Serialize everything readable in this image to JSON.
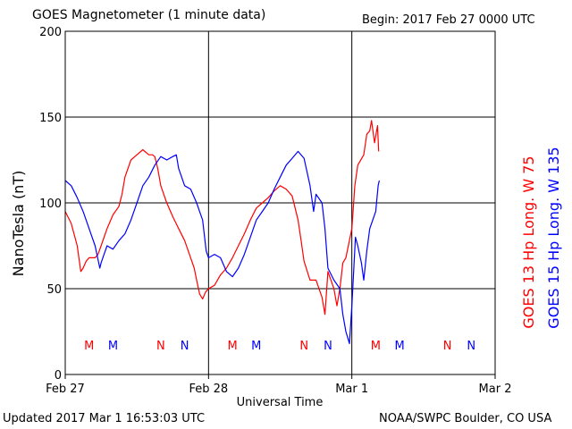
{
  "header": {
    "title": "GOES Magnetometer (1 minute data)",
    "begin": "Begin:  2017 Feb 27 0000 UTC"
  },
  "footer": {
    "updated": "Updated 2017 Mar  1 16:53:03 UTC",
    "credit": "NOAA/SWPC Boulder, CO USA"
  },
  "colors": {
    "goes13": "#ff0000",
    "goes15": "#0000ff",
    "grid": "#000000"
  },
  "chart_data": {
    "type": "line",
    "title": "GOES Magnetometer (1 minute data)",
    "xlabel": "Universal Time",
    "ylabel": "NanoTesla (nT)",
    "xlim": [
      0,
      72
    ],
    "ylim": [
      0,
      200
    ],
    "x_unit": "hours since 2017 Feb 27 0000 UTC",
    "x_ticks": [
      {
        "x": 0,
        "label": "Feb 27"
      },
      {
        "x": 24,
        "label": "Feb 28"
      },
      {
        "x": 48,
        "label": "Mar 1"
      },
      {
        "x": 72,
        "label": "Mar 2"
      }
    ],
    "y_ticks": [
      0,
      50,
      100,
      150,
      200
    ],
    "grid": true,
    "legend_placement": "right, vertical",
    "series": [
      {
        "name": "GOES 13 Hp  Long. W 75",
        "color": "#ff0000",
        "points": [
          [
            0,
            95
          ],
          [
            1,
            88
          ],
          [
            2,
            75
          ],
          [
            2.6,
            60
          ],
          [
            3,
            62
          ],
          [
            3.5,
            66
          ],
          [
            4,
            68
          ],
          [
            5,
            68
          ],
          [
            5.5,
            70
          ],
          [
            6,
            75
          ],
          [
            7,
            85
          ],
          [
            8,
            93
          ],
          [
            9,
            98
          ],
          [
            9.5,
            105
          ],
          [
            10,
            115
          ],
          [
            11,
            125
          ],
          [
            12,
            128
          ],
          [
            13,
            131
          ],
          [
            14,
            128
          ],
          [
            14.6,
            128
          ],
          [
            15,
            127
          ],
          [
            15.5,
            120
          ],
          [
            16,
            110
          ],
          [
            17,
            100
          ],
          [
            18,
            92
          ],
          [
            19,
            85
          ],
          [
            20,
            78
          ],
          [
            21,
            68
          ],
          [
            21.6,
            62
          ],
          [
            22,
            55
          ],
          [
            22.5,
            47
          ],
          [
            23,
            44
          ],
          [
            23.5,
            48
          ],
          [
            24,
            50
          ],
          [
            25,
            52
          ],
          [
            26,
            58
          ],
          [
            27,
            62
          ],
          [
            28,
            68
          ],
          [
            29,
            75
          ],
          [
            30,
            82
          ],
          [
            31,
            90
          ],
          [
            32,
            97
          ],
          [
            33,
            100
          ],
          [
            34,
            103
          ],
          [
            35,
            107
          ],
          [
            36,
            110
          ],
          [
            37,
            108
          ],
          [
            38,
            104
          ],
          [
            39,
            90
          ],
          [
            39.5,
            78
          ],
          [
            40,
            66
          ],
          [
            41,
            55
          ],
          [
            42,
            55
          ],
          [
            43,
            45
          ],
          [
            43.5,
            35
          ],
          [
            44,
            60
          ],
          [
            44.5,
            55
          ],
          [
            45,
            50
          ],
          [
            45.5,
            40
          ],
          [
            46,
            50
          ],
          [
            46.5,
            65
          ],
          [
            47,
            68
          ],
          [
            48,
            85
          ],
          [
            48.5,
            110
          ],
          [
            49,
            122
          ],
          [
            50,
            128
          ],
          [
            50.5,
            140
          ],
          [
            51,
            142
          ],
          [
            51.3,
            148
          ],
          [
            51.8,
            135
          ],
          [
            52.3,
            145
          ],
          [
            52.5,
            130
          ]
        ]
      },
      {
        "name": "GOES 15 Hp  Long. W 135",
        "color": "#0000ff",
        "points": [
          [
            0,
            113
          ],
          [
            1,
            110
          ],
          [
            2,
            103
          ],
          [
            3,
            95
          ],
          [
            4,
            85
          ],
          [
            5,
            75
          ],
          [
            5.8,
            62
          ],
          [
            6,
            65
          ],
          [
            6.5,
            70
          ],
          [
            7,
            75
          ],
          [
            8,
            73
          ],
          [
            9,
            78
          ],
          [
            10,
            82
          ],
          [
            11,
            90
          ],
          [
            12,
            100
          ],
          [
            13,
            110
          ],
          [
            14,
            115
          ],
          [
            15,
            122
          ],
          [
            16,
            127
          ],
          [
            17,
            125
          ],
          [
            18,
            127
          ],
          [
            18.6,
            128
          ],
          [
            19,
            120
          ],
          [
            20,
            110
          ],
          [
            21,
            108
          ],
          [
            22,
            100
          ],
          [
            22.5,
            95
          ],
          [
            23,
            90
          ],
          [
            23.6,
            72
          ],
          [
            24,
            68
          ],
          [
            25,
            70
          ],
          [
            26,
            68
          ],
          [
            27,
            60
          ],
          [
            28,
            57
          ],
          [
            29,
            62
          ],
          [
            30,
            70
          ],
          [
            31,
            80
          ],
          [
            32,
            90
          ],
          [
            33,
            95
          ],
          [
            34,
            100
          ],
          [
            35,
            108
          ],
          [
            36,
            115
          ],
          [
            37,
            122
          ],
          [
            38,
            126
          ],
          [
            39,
            130
          ],
          [
            40,
            126
          ],
          [
            41,
            110
          ],
          [
            41.6,
            95
          ],
          [
            42,
            105
          ],
          [
            43,
            100
          ],
          [
            43.5,
            85
          ],
          [
            44,
            62
          ],
          [
            45,
            55
          ],
          [
            46,
            50
          ],
          [
            46.5,
            35
          ],
          [
            47,
            25
          ],
          [
            47.6,
            18
          ],
          [
            48,
            40
          ],
          [
            48.6,
            80
          ],
          [
            49,
            75
          ],
          [
            49.6,
            65
          ],
          [
            50,
            55
          ],
          [
            50.5,
            72
          ],
          [
            51,
            85
          ],
          [
            52,
            95
          ],
          [
            52.4,
            110
          ],
          [
            52.6,
            113
          ]
        ]
      }
    ],
    "markers": [
      {
        "x": 4,
        "label": "M",
        "color": "#ff0000"
      },
      {
        "x": 8,
        "label": "M",
        "color": "#0000ff"
      },
      {
        "x": 16,
        "label": "N",
        "color": "#ff0000"
      },
      {
        "x": 20,
        "label": "N",
        "color": "#0000ff"
      },
      {
        "x": 28,
        "label": "M",
        "color": "#ff0000"
      },
      {
        "x": 32,
        "label": "M",
        "color": "#0000ff"
      },
      {
        "x": 40,
        "label": "N",
        "color": "#ff0000"
      },
      {
        "x": 44,
        "label": "N",
        "color": "#0000ff"
      },
      {
        "x": 52,
        "label": "M",
        "color": "#ff0000"
      },
      {
        "x": 56,
        "label": "M",
        "color": "#0000ff"
      },
      {
        "x": 64,
        "label": "N",
        "color": "#ff0000"
      },
      {
        "x": 68,
        "label": "N",
        "color": "#0000ff"
      }
    ]
  }
}
